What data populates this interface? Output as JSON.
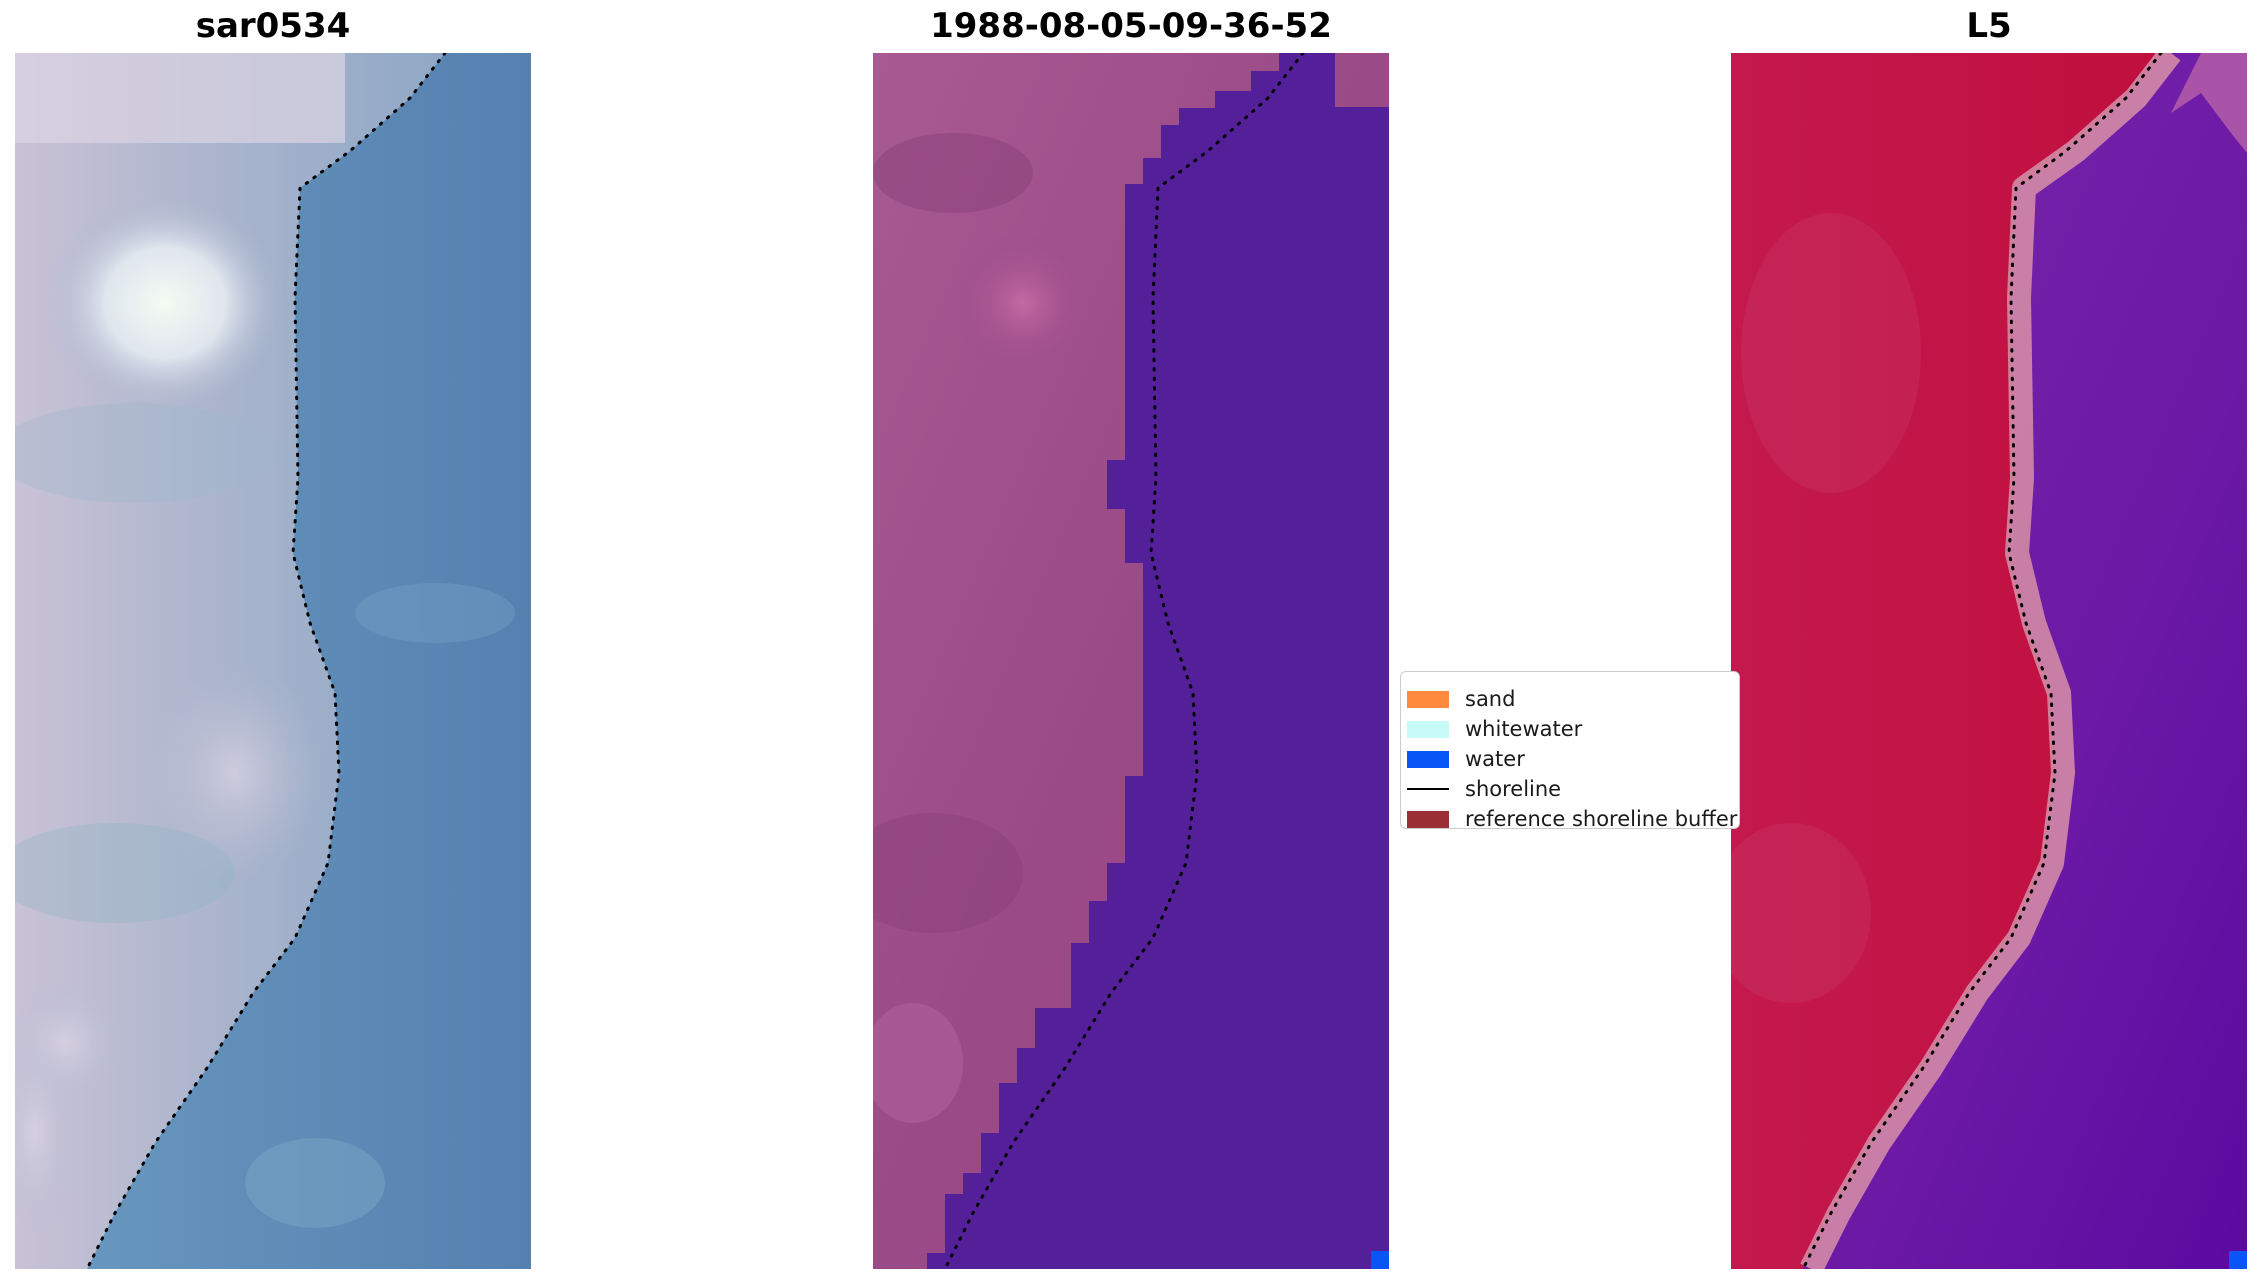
{
  "panels": [
    {
      "title": "sar0534"
    },
    {
      "title": "1988-08-05-09-36-52"
    },
    {
      "title": "L5"
    }
  ],
  "legend": {
    "items": [
      {
        "label": "sand",
        "kind": "patch",
        "color": "#ff8a3d"
      },
      {
        "label": "whitewater",
        "kind": "patch",
        "color": "#c8fbf8"
      },
      {
        "label": "water",
        "kind": "patch",
        "color": "#0a55f5"
      },
      {
        "label": "shoreline",
        "kind": "line",
        "color": "#000000"
      },
      {
        "label": "reference shoreline buffer",
        "kind": "patch",
        "color": "#9a2f35"
      }
    ]
  },
  "colors": {
    "rgb_land": "#b8b4cc",
    "rgb_water": "#5a86b2",
    "class_land": "#9a4a86",
    "class_water": "#53209a",
    "index_land": "#c21344",
    "index_water": "#6f1aa6",
    "index_edge": "#d38aa6",
    "water_pixel": "#0a55f5"
  }
}
